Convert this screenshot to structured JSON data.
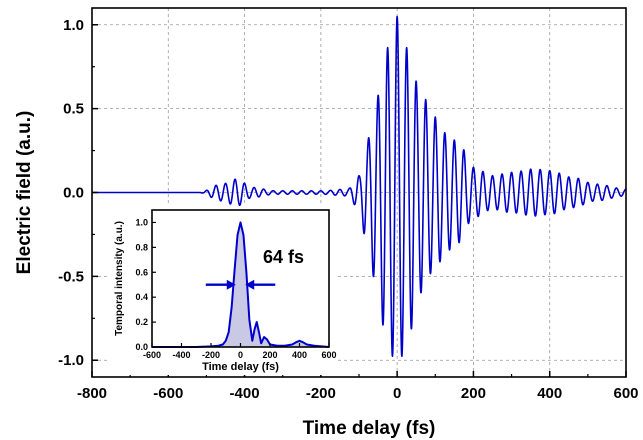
{
  "chart_data": [
    {
      "type": "line",
      "xlabel": "Time delay (fs)",
      "ylabel": "Electric field  (a.u.)",
      "xlim": [
        -800,
        600
      ],
      "ylim": [
        -1.1,
        1.1
      ],
      "x_ticks": [
        -800,
        -600,
        -400,
        -200,
        0,
        200,
        400,
        600
      ],
      "y_ticks": [
        -1.0,
        -0.5,
        0.0,
        0.5,
        1.0
      ],
      "y_tick_labels": [
        "-1.0",
        "-0.5",
        "0.0",
        "0.5",
        "1.0"
      ],
      "grid": true,
      "color": "#0000cc",
      "series": [
        {
          "carrier_period_fs": 25,
          "envelope_points": [
            {
              "x": -800,
              "y": 0.0
            },
            {
              "x": -520,
              "y": 0.0
            },
            {
              "x": -460,
              "y": 0.05
            },
            {
              "x": -420,
              "y": 0.08
            },
            {
              "x": -380,
              "y": 0.03
            },
            {
              "x": -320,
              "y": 0.01
            },
            {
              "x": -200,
              "y": 0.01
            },
            {
              "x": -130,
              "y": 0.02
            },
            {
              "x": -100,
              "y": 0.1
            },
            {
              "x": -80,
              "y": 0.3
            },
            {
              "x": -55,
              "y": 0.55
            },
            {
              "x": -30,
              "y": 0.85
            },
            {
              "x": 0,
              "y": 1.05
            },
            {
              "x": 30,
              "y": 0.85
            },
            {
              "x": 60,
              "y": 0.6
            },
            {
              "x": 100,
              "y": 0.45
            },
            {
              "x": 130,
              "y": 0.35
            },
            {
              "x": 160,
              "y": 0.3
            },
            {
              "x": 200,
              "y": 0.15
            },
            {
              "x": 250,
              "y": 0.1
            },
            {
              "x": 300,
              "y": 0.12
            },
            {
              "x": 360,
              "y": 0.14
            },
            {
              "x": 400,
              "y": 0.13
            },
            {
              "x": 460,
              "y": 0.09
            },
            {
              "x": 520,
              "y": 0.05
            },
            {
              "x": 600,
              "y": 0.02
            }
          ]
        }
      ]
    },
    {
      "type": "area",
      "xlabel": "Time delay (fs)",
      "ylabel": "Temporal intensity (a.u.)",
      "xlim": [
        -600,
        600
      ],
      "ylim": [
        0,
        1.1
      ],
      "x_ticks": [
        -600,
        -400,
        -200,
        0,
        200,
        400,
        600
      ],
      "y_ticks": [
        0.0,
        0.2,
        0.4,
        0.6,
        0.8,
        1.0
      ],
      "y_tick_labels": [
        "0.0",
        "0.2",
        "0.4",
        "0.6",
        "0.8",
        "1.0"
      ],
      "annotation": "64 fs",
      "color": "#0000cc",
      "fill": "#c9c9e6",
      "series": [
        {
          "x": [
            -600,
            -300,
            -200,
            -150,
            -120,
            -100,
            -80,
            -60,
            -40,
            -20,
            0,
            20,
            40,
            60,
            80,
            95,
            110,
            125,
            140,
            160,
            180,
            200,
            250,
            300,
            350,
            380,
            400,
            420,
            450,
            500,
            600
          ],
          "y": [
            0.0,
            0.0,
            0.005,
            0.01,
            0.02,
            0.05,
            0.12,
            0.32,
            0.62,
            0.9,
            1.0,
            0.9,
            0.6,
            0.22,
            0.05,
            0.14,
            0.2,
            0.12,
            0.03,
            0.08,
            0.06,
            0.02,
            0.01,
            0.01,
            0.02,
            0.04,
            0.05,
            0.04,
            0.02,
            0.01,
            0.0
          ]
        }
      ]
    }
  ]
}
